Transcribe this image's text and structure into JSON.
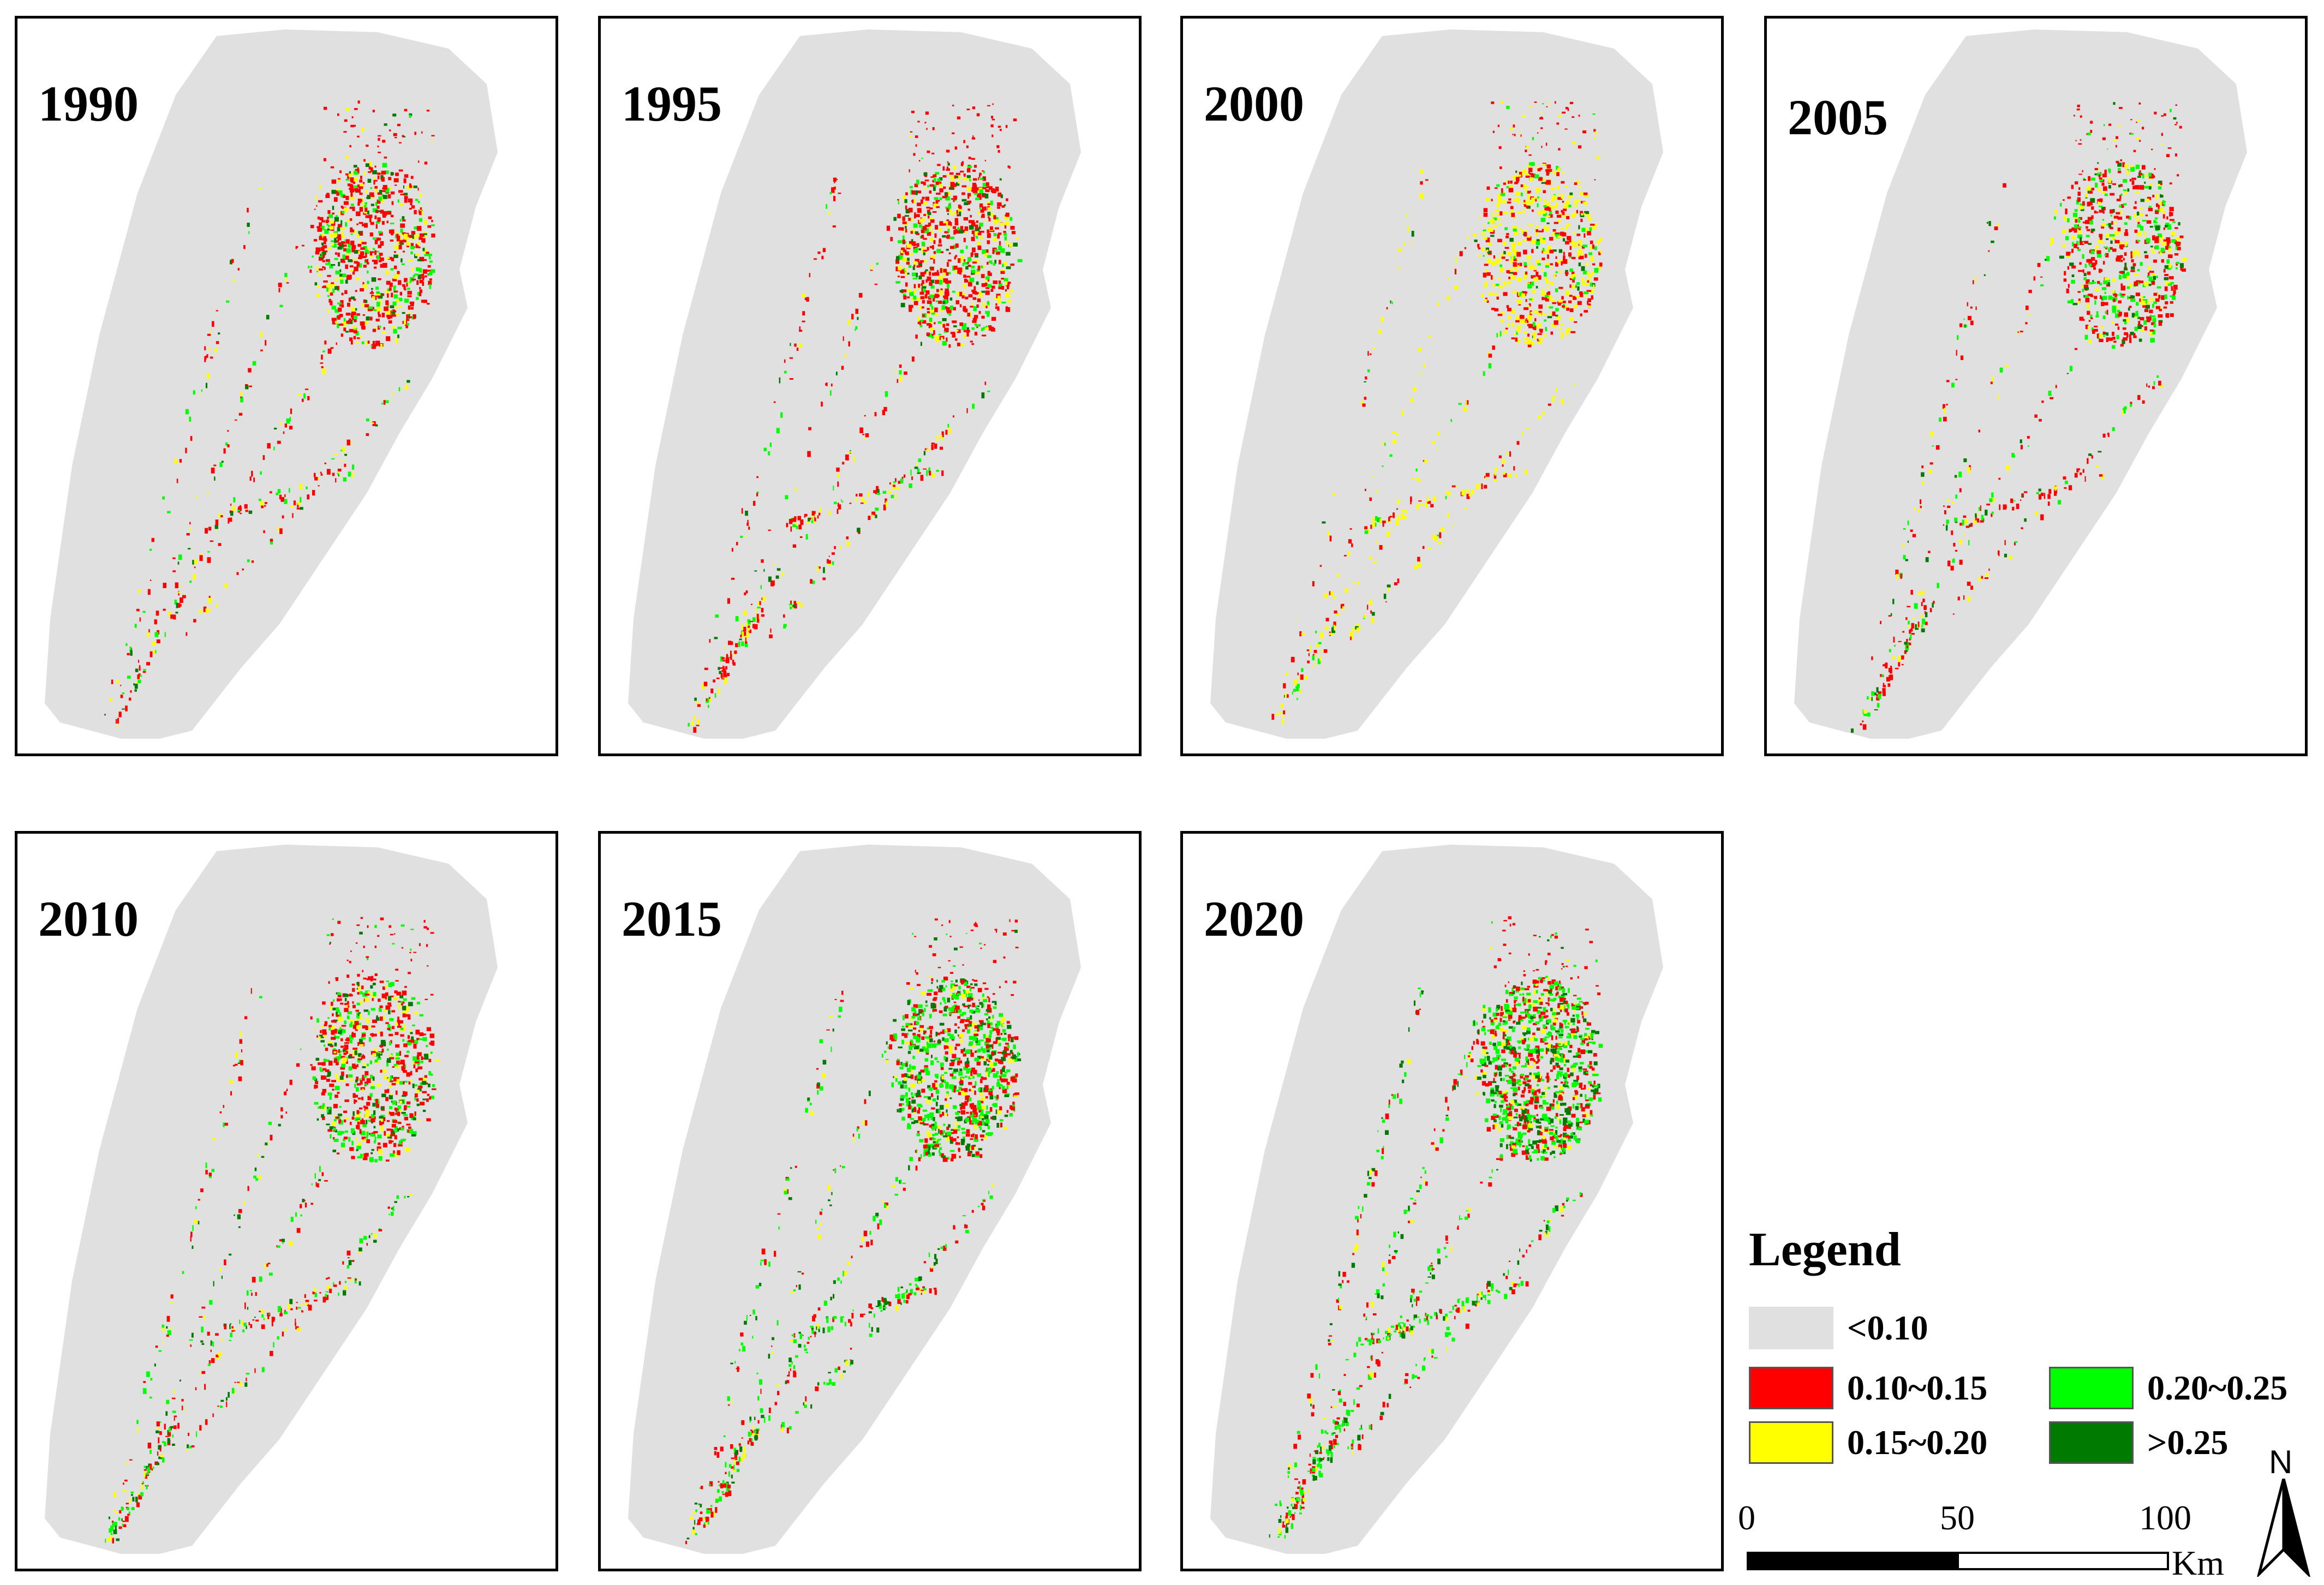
{
  "panels": [
    {
      "year": "1990",
      "variant": 0
    },
    {
      "year": "1995",
      "variant": 1
    },
    {
      "year": "2000",
      "variant": 2
    },
    {
      "year": "2005",
      "variant": 3
    },
    {
      "year": "2010",
      "variant": 4
    },
    {
      "year": "2015",
      "variant": 5
    },
    {
      "year": "2020",
      "variant": 6
    }
  ],
  "legend": {
    "title": "Legend",
    "items": [
      {
        "label": "<0.10",
        "color": "#e0e0e0"
      },
      {
        "label": "0.10~0.15",
        "color": "#ff0000"
      },
      {
        "label": "0.15~0.20",
        "color": "#ffff00"
      },
      {
        "label": "0.20~0.25",
        "color": "#00ff00"
      },
      {
        "label": ">0.25",
        "color": "#007a00"
      }
    ]
  },
  "scale": {
    "ticks": [
      "0",
      "50",
      "100"
    ],
    "unit": "Km"
  },
  "north": "N"
}
